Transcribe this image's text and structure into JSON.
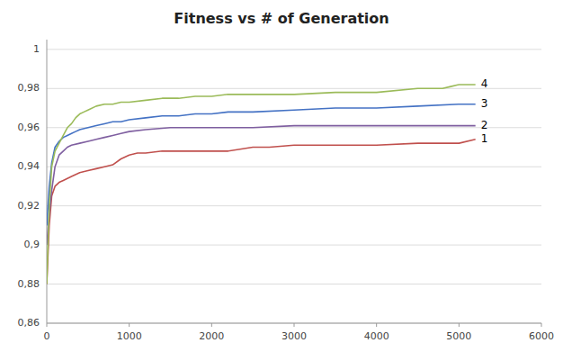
{
  "chart_data": {
    "type": "line",
    "title": "Fitness vs # of Generation",
    "xlim": [
      0,
      6000
    ],
    "ylim": [
      0.86,
      1.005
    ],
    "xticks": [
      0,
      1000,
      2000,
      3000,
      4000,
      5000,
      6000
    ],
    "yticks": [
      {
        "value": 0.86,
        "label": "0,86"
      },
      {
        "value": 0.88,
        "label": "0,88"
      },
      {
        "value": 0.9,
        "label": "0,9"
      },
      {
        "value": 0.92,
        "label": "0,92"
      },
      {
        "value": 0.94,
        "label": "0,94"
      },
      {
        "value": 0.96,
        "label": "0,96"
      },
      {
        "value": 0.98,
        "label": "0,98"
      },
      1
    ],
    "grid": true,
    "series": [
      {
        "name": "1",
        "color": "#c0504d",
        "x": [
          0,
          30,
          60,
          100,
          150,
          200,
          300,
          400,
          500,
          600,
          700,
          800,
          900,
          1000,
          1100,
          1200,
          1400,
          1600,
          1800,
          2000,
          2200,
          2500,
          2600,
          2700,
          3000,
          3200,
          3500,
          4000,
          4500,
          4800,
          5000,
          5200
        ],
        "values": [
          0.88,
          0.91,
          0.925,
          0.93,
          0.932,
          0.933,
          0.935,
          0.937,
          0.938,
          0.939,
          0.94,
          0.941,
          0.944,
          0.946,
          0.947,
          0.947,
          0.948,
          0.948,
          0.948,
          0.948,
          0.948,
          0.95,
          0.95,
          0.95,
          0.951,
          0.951,
          0.951,
          0.951,
          0.952,
          0.952,
          0.952,
          0.954
        ]
      },
      {
        "name": "2",
        "color": "#7f5fa0",
        "x": [
          0,
          30,
          60,
          100,
          150,
          200,
          250,
          300,
          400,
          500,
          600,
          700,
          800,
          900,
          1000,
          1200,
          1500,
          2000,
          2500,
          3000,
          3500,
          4000,
          4500,
          5000,
          5200
        ],
        "values": [
          0.9,
          0.916,
          0.928,
          0.94,
          0.946,
          0.948,
          0.95,
          0.951,
          0.952,
          0.953,
          0.954,
          0.955,
          0.956,
          0.957,
          0.958,
          0.959,
          0.96,
          0.96,
          0.96,
          0.961,
          0.961,
          0.961,
          0.961,
          0.961,
          0.961
        ]
      },
      {
        "name": "3",
        "color": "#4472c4",
        "x": [
          0,
          30,
          60,
          100,
          150,
          200,
          250,
          300,
          350,
          400,
          500,
          600,
          700,
          800,
          900,
          1000,
          1200,
          1400,
          1600,
          1800,
          2000,
          2200,
          2500,
          3000,
          3500,
          4000,
          4500,
          5000,
          5200
        ],
        "values": [
          0.91,
          0.93,
          0.942,
          0.95,
          0.953,
          0.955,
          0.956,
          0.957,
          0.958,
          0.959,
          0.96,
          0.961,
          0.962,
          0.963,
          0.963,
          0.964,
          0.965,
          0.966,
          0.966,
          0.967,
          0.967,
          0.968,
          0.968,
          0.969,
          0.97,
          0.97,
          0.971,
          0.972,
          0.972
        ]
      },
      {
        "name": "4",
        "color": "#9bbb59",
        "x": [
          0,
          30,
          60,
          100,
          150,
          200,
          250,
          300,
          350,
          400,
          450,
          500,
          600,
          700,
          800,
          900,
          1000,
          1200,
          1400,
          1600,
          1800,
          2000,
          2200,
          2500,
          3000,
          3500,
          4000,
          4500,
          4700,
          4800,
          4900,
          5000,
          5200
        ],
        "values": [
          0.88,
          0.92,
          0.94,
          0.948,
          0.952,
          0.956,
          0.96,
          0.962,
          0.965,
          0.967,
          0.968,
          0.969,
          0.971,
          0.972,
          0.972,
          0.973,
          0.973,
          0.974,
          0.975,
          0.975,
          0.976,
          0.976,
          0.977,
          0.977,
          0.977,
          0.978,
          0.978,
          0.98,
          0.98,
          0.98,
          0.981,
          0.982,
          0.982
        ]
      }
    ]
  }
}
